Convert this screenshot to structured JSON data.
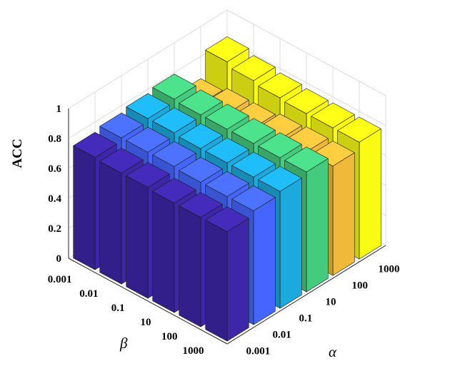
{
  "chart_data": {
    "type": "bar3d",
    "zlabel": "ACC",
    "xlabel": "α",
    "ylabel": "β",
    "zlim": [
      0,
      1
    ],
    "zticks": [
      "0",
      "0.2",
      "0.4",
      "0.6",
      "0.8",
      "1"
    ],
    "alpha_values": [
      "0.001",
      "0.01",
      "0.1",
      "10",
      "100",
      "1000"
    ],
    "beta_values": [
      "0.001",
      "0.01",
      "0.1",
      "10",
      "100",
      "1000"
    ],
    "grid": true,
    "series": [
      {
        "alpha": "0.001",
        "color": "#3e26a8",
        "values": [
          0.75,
          0.74,
          0.74,
          0.73,
          0.73,
          0.73
        ]
      },
      {
        "alpha": "0.01",
        "color": "#4466ff",
        "values": [
          0.77,
          0.77,
          0.77,
          0.76,
          0.76,
          0.76
        ]
      },
      {
        "alpha": "0.1",
        "color": "#1ca9de",
        "values": [
          0.79,
          0.79,
          0.78,
          0.78,
          0.78,
          0.78
        ]
      },
      {
        "alpha": "10",
        "color": "#45cb7e",
        "values": [
          0.81,
          0.8,
          0.8,
          0.8,
          0.8,
          0.8
        ]
      },
      {
        "alpha": "100",
        "color": "#f0b93a",
        "values": [
          0.67,
          0.7,
          0.7,
          0.72,
          0.73,
          0.73
        ]
      },
      {
        "alpha": "1000",
        "color": "#f9fb15",
        "values": [
          0.84,
          0.81,
          0.79,
          0.78,
          0.78,
          0.78
        ]
      }
    ]
  }
}
